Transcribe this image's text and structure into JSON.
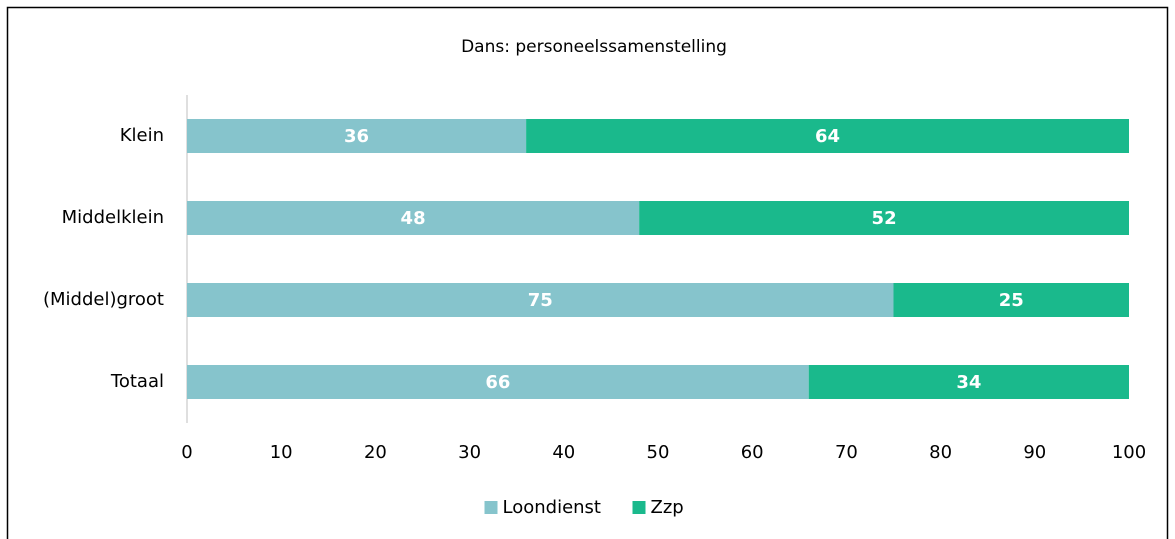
{
  "chart_data": {
    "type": "bar",
    "orientation": "horizontal",
    "stacked": true,
    "title": "Dans: personeelssamenstelling",
    "categories": [
      "Klein",
      "Middelklein",
      "(Middel)groot",
      "Totaal"
    ],
    "series": [
      {
        "name": "Loondienst",
        "color": "#86c4cc",
        "values": [
          36,
          48,
          75,
          66
        ]
      },
      {
        "name": "Zzp",
        "color": "#1ab98c",
        "values": [
          64,
          52,
          25,
          34
        ]
      }
    ],
    "xlim": [
      0,
      100
    ],
    "xticks": [
      0,
      10,
      20,
      30,
      40,
      50,
      60,
      70,
      80,
      90,
      100
    ],
    "legend": "bottom",
    "grid": false
  }
}
